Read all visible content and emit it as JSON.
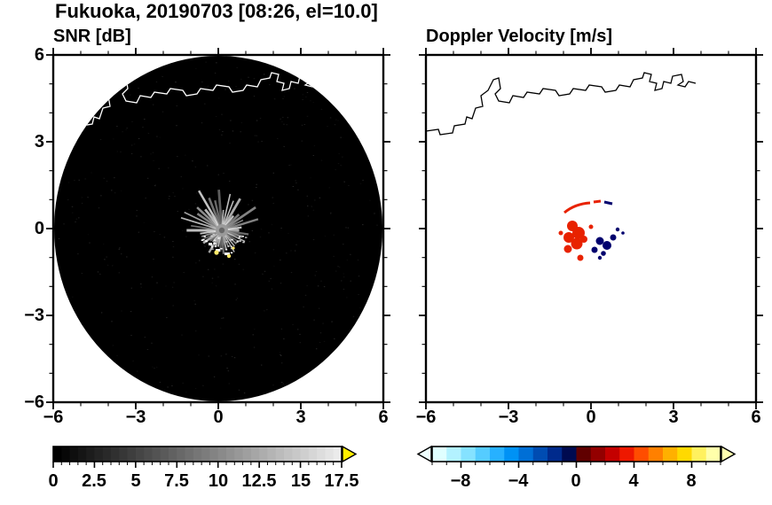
{
  "title": "Fukuoka, 20190703 [08:26, el=10.0]",
  "station": "Fukuoka",
  "date": "20190703",
  "time": "08:26",
  "elevation": "10.0",
  "panels": {
    "snr": {
      "title": "SNR [dB]",
      "y_tick_labels": [
        "6",
        "3",
        "0",
        "−3",
        "−6"
      ],
      "x_tick_labels": [
        "−6",
        "−3",
        "0",
        "3",
        "6"
      ],
      "colorbar_tick_labels": [
        "0",
        "2.5",
        "5",
        "7.5",
        "10",
        "12.5",
        "15",
        "17.5"
      ]
    },
    "doppler": {
      "title": "Doppler Velocity [m/s]",
      "x_tick_labels": [
        "−6",
        "−3",
        "0",
        "3",
        "6"
      ],
      "colorbar_tick_labels": [
        "−8",
        "−4",
        "0",
        "4",
        "8"
      ]
    }
  },
  "colors": {
    "background": "#ffffff",
    "frame": "#000000",
    "radar_disk": "#000000",
    "coast_snr": "#ffffff",
    "coast_doppler": "#000000",
    "echo_red": "#e82200",
    "echo_navy": "#00006e",
    "echo_yellow": "#ffe96a",
    "center_gray": "#9a9a9a",
    "cbar_over_snr": "#ffee00",
    "cbar_under_doppler": "#eeffff",
    "cbar_over_doppler": "#ffffb0"
  },
  "chart_data": [
    {
      "type": "heatmap",
      "title": "SNR [dB]",
      "xlim": [
        -6,
        6
      ],
      "ylim": [
        -6,
        6
      ],
      "x_ticks": [
        -6,
        -3,
        0,
        3,
        6
      ],
      "y_ticks": [
        -6,
        -3,
        0,
        3,
        6
      ],
      "minor_tick_step": 1,
      "colorbar": {
        "range": [
          0,
          17.5
        ],
        "ticks": [
          0,
          2.5,
          5,
          7.5,
          10,
          12.5,
          15,
          17.5
        ],
        "minor_step": 0.5,
        "colormap": "grayscale black to light gray",
        "over_arrow_color": "#ffee00"
      },
      "description": "Radar PPI: black circular scan disk of radius 6 centered at origin; white coastline traced across the upper part of the disk; echo cluster near the origin shown as gray radial streaks around a gray center dot with bright white and yellow speckles below center; faint gray noise speckle over the whole disk."
    },
    {
      "type": "heatmap",
      "title": "Doppler Velocity [m/s]",
      "xlim": [
        -6,
        6
      ],
      "ylim": [
        -6,
        6
      ],
      "x_ticks": [
        -6,
        -3,
        0,
        3,
        6
      ],
      "y_ticks": [
        -6,
        -3,
        0,
        3,
        6
      ],
      "minor_tick_step": 1,
      "colorbar": {
        "range": [
          -10,
          10
        ],
        "ticks": [
          -8,
          -4,
          0,
          4,
          8
        ],
        "minor_step": 1,
        "colors": [
          "#e0ffff",
          "#b3f2ff",
          "#85e2ff",
          "#55ccff",
          "#27b1ff",
          "#0092f5",
          "#006fd6",
          "#004cb2",
          "#002a8c",
          "#000a50",
          "#600000",
          "#930000",
          "#c40000",
          "#ee1800",
          "#ff4d00",
          "#ff8000",
          "#ffb000",
          "#ffd900",
          "#fff15e",
          "#ffffaa"
        ],
        "under_arrow_color": "#eeffff",
        "over_arrow_color": "#ffffb0"
      },
      "description": "Same scan area on white background with black coastline across the top; small velocity echo cluster near origin: red patches (positive velocities) on the left side, dark navy patches (negative velocities) on the right side, and a thin red arc just above the cluster."
    }
  ]
}
